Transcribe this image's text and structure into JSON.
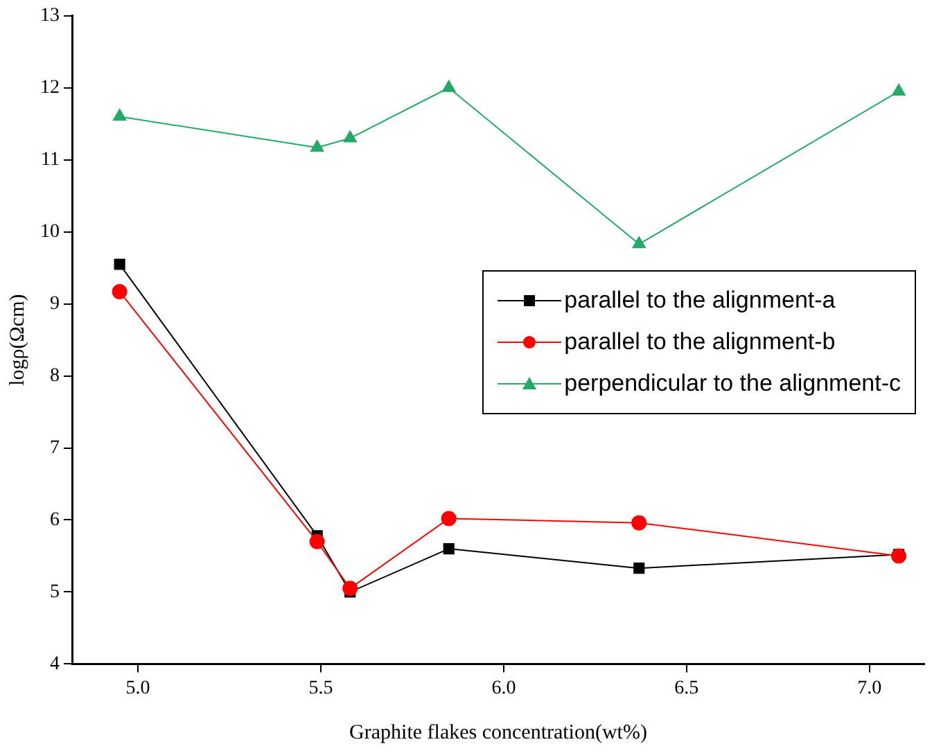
{
  "chart_data": {
    "type": "line",
    "xlabel": "Graphite flakes concentration(wt%)",
    "ylabel": "logρ(Ωcm)",
    "x": [
      4.95,
      5.49,
      5.58,
      5.85,
      6.37,
      7.08
    ],
    "series": [
      {
        "name": "parallel to the alignment-a",
        "color": "#000000",
        "marker": "square",
        "values": [
          9.55,
          5.78,
          5.0,
          5.6,
          5.33,
          5.52
        ]
      },
      {
        "name": "parallel to the alignment-b",
        "color": "#ff0000",
        "marker": "circle",
        "values": [
          9.17,
          5.7,
          5.05,
          6.02,
          5.96,
          5.5
        ]
      },
      {
        "name": "perpendicular to the alignment-c",
        "color": "#22aa66",
        "marker": "triangle",
        "values": [
          11.6,
          11.17,
          11.3,
          12.0,
          9.83,
          11.95
        ]
      }
    ],
    "xlim": [
      4.82,
      7.15
    ],
    "xticks": [
      {
        "value": 5,
        "label": "5.0"
      },
      {
        "value": 5.5,
        "label": "5.5"
      },
      {
        "value": 6,
        "label": "6.0"
      },
      {
        "value": 6.5,
        "label": "6.5"
      },
      {
        "value": 7,
        "label": "7.0"
      }
    ],
    "ylim": [
      4,
      13
    ],
    "yticks": [
      4,
      5,
      6,
      7,
      8,
      9,
      10,
      11,
      12,
      13
    ],
    "grid": false,
    "legend": "right",
    "line_style": "solid"
  }
}
